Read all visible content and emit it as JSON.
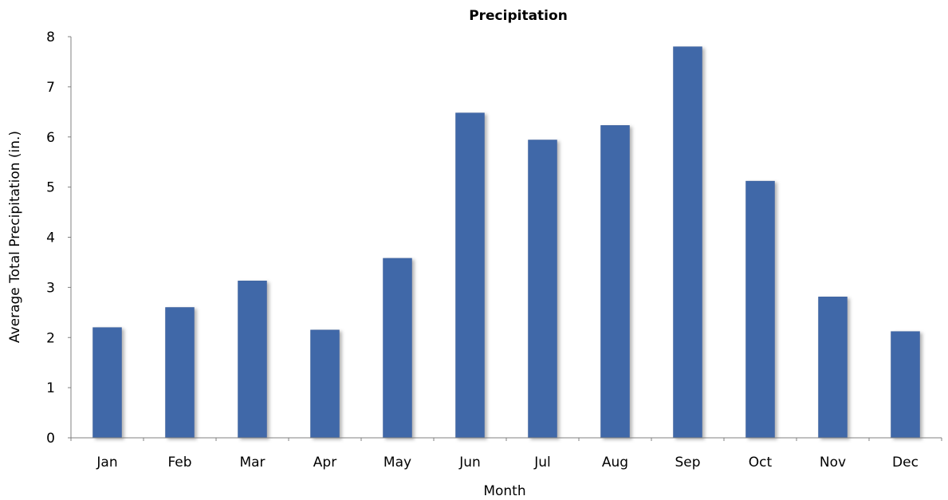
{
  "chart_data": {
    "type": "bar",
    "title": "Precipitation",
    "xlabel": "Month",
    "ylabel": "Average Total Precipitation (in.)",
    "categories": [
      "Jan",
      "Feb",
      "Mar",
      "Apr",
      "May",
      "Jun",
      "Jul",
      "Aug",
      "Sep",
      "Oct",
      "Nov",
      "Dec"
    ],
    "values": [
      2.2,
      2.6,
      3.13,
      2.15,
      3.58,
      6.48,
      5.94,
      6.23,
      7.8,
      5.12,
      2.81,
      2.12
    ],
    "ylim": [
      0,
      8
    ],
    "yticks": [
      0,
      1,
      2,
      3,
      4,
      5,
      6,
      7,
      8
    ],
    "grid": false,
    "legend": "none",
    "colors": {
      "bar": "#4167a8",
      "bar_edge": "#3a5d98",
      "axis": "#808080"
    }
  }
}
